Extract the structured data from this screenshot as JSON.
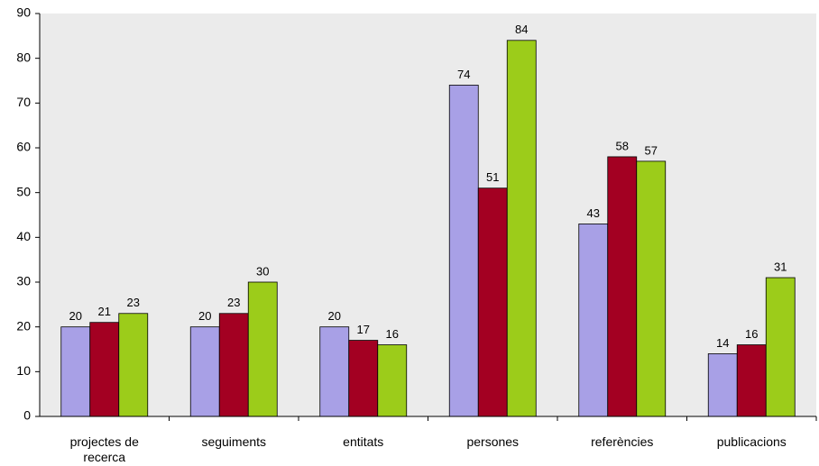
{
  "chart_data": {
    "type": "bar",
    "categories": [
      "projectes de recerca",
      "seguiments",
      "entitats",
      "persones",
      "referències",
      "publicacions"
    ],
    "series": [
      {
        "color": "#a8a0e6",
        "values": [
          20,
          20,
          20,
          74,
          43,
          14
        ]
      },
      {
        "color": "#a30022",
        "values": [
          21,
          23,
          17,
          51,
          58,
          16
        ]
      },
      {
        "color": "#9ccc1a",
        "values": [
          23,
          30,
          16,
          84,
          57,
          31
        ]
      }
    ],
    "ylim": [
      0,
      90
    ],
    "yticks": [
      0,
      10,
      20,
      30,
      40,
      50,
      60,
      70,
      80,
      90
    ],
    "grid": false
  }
}
